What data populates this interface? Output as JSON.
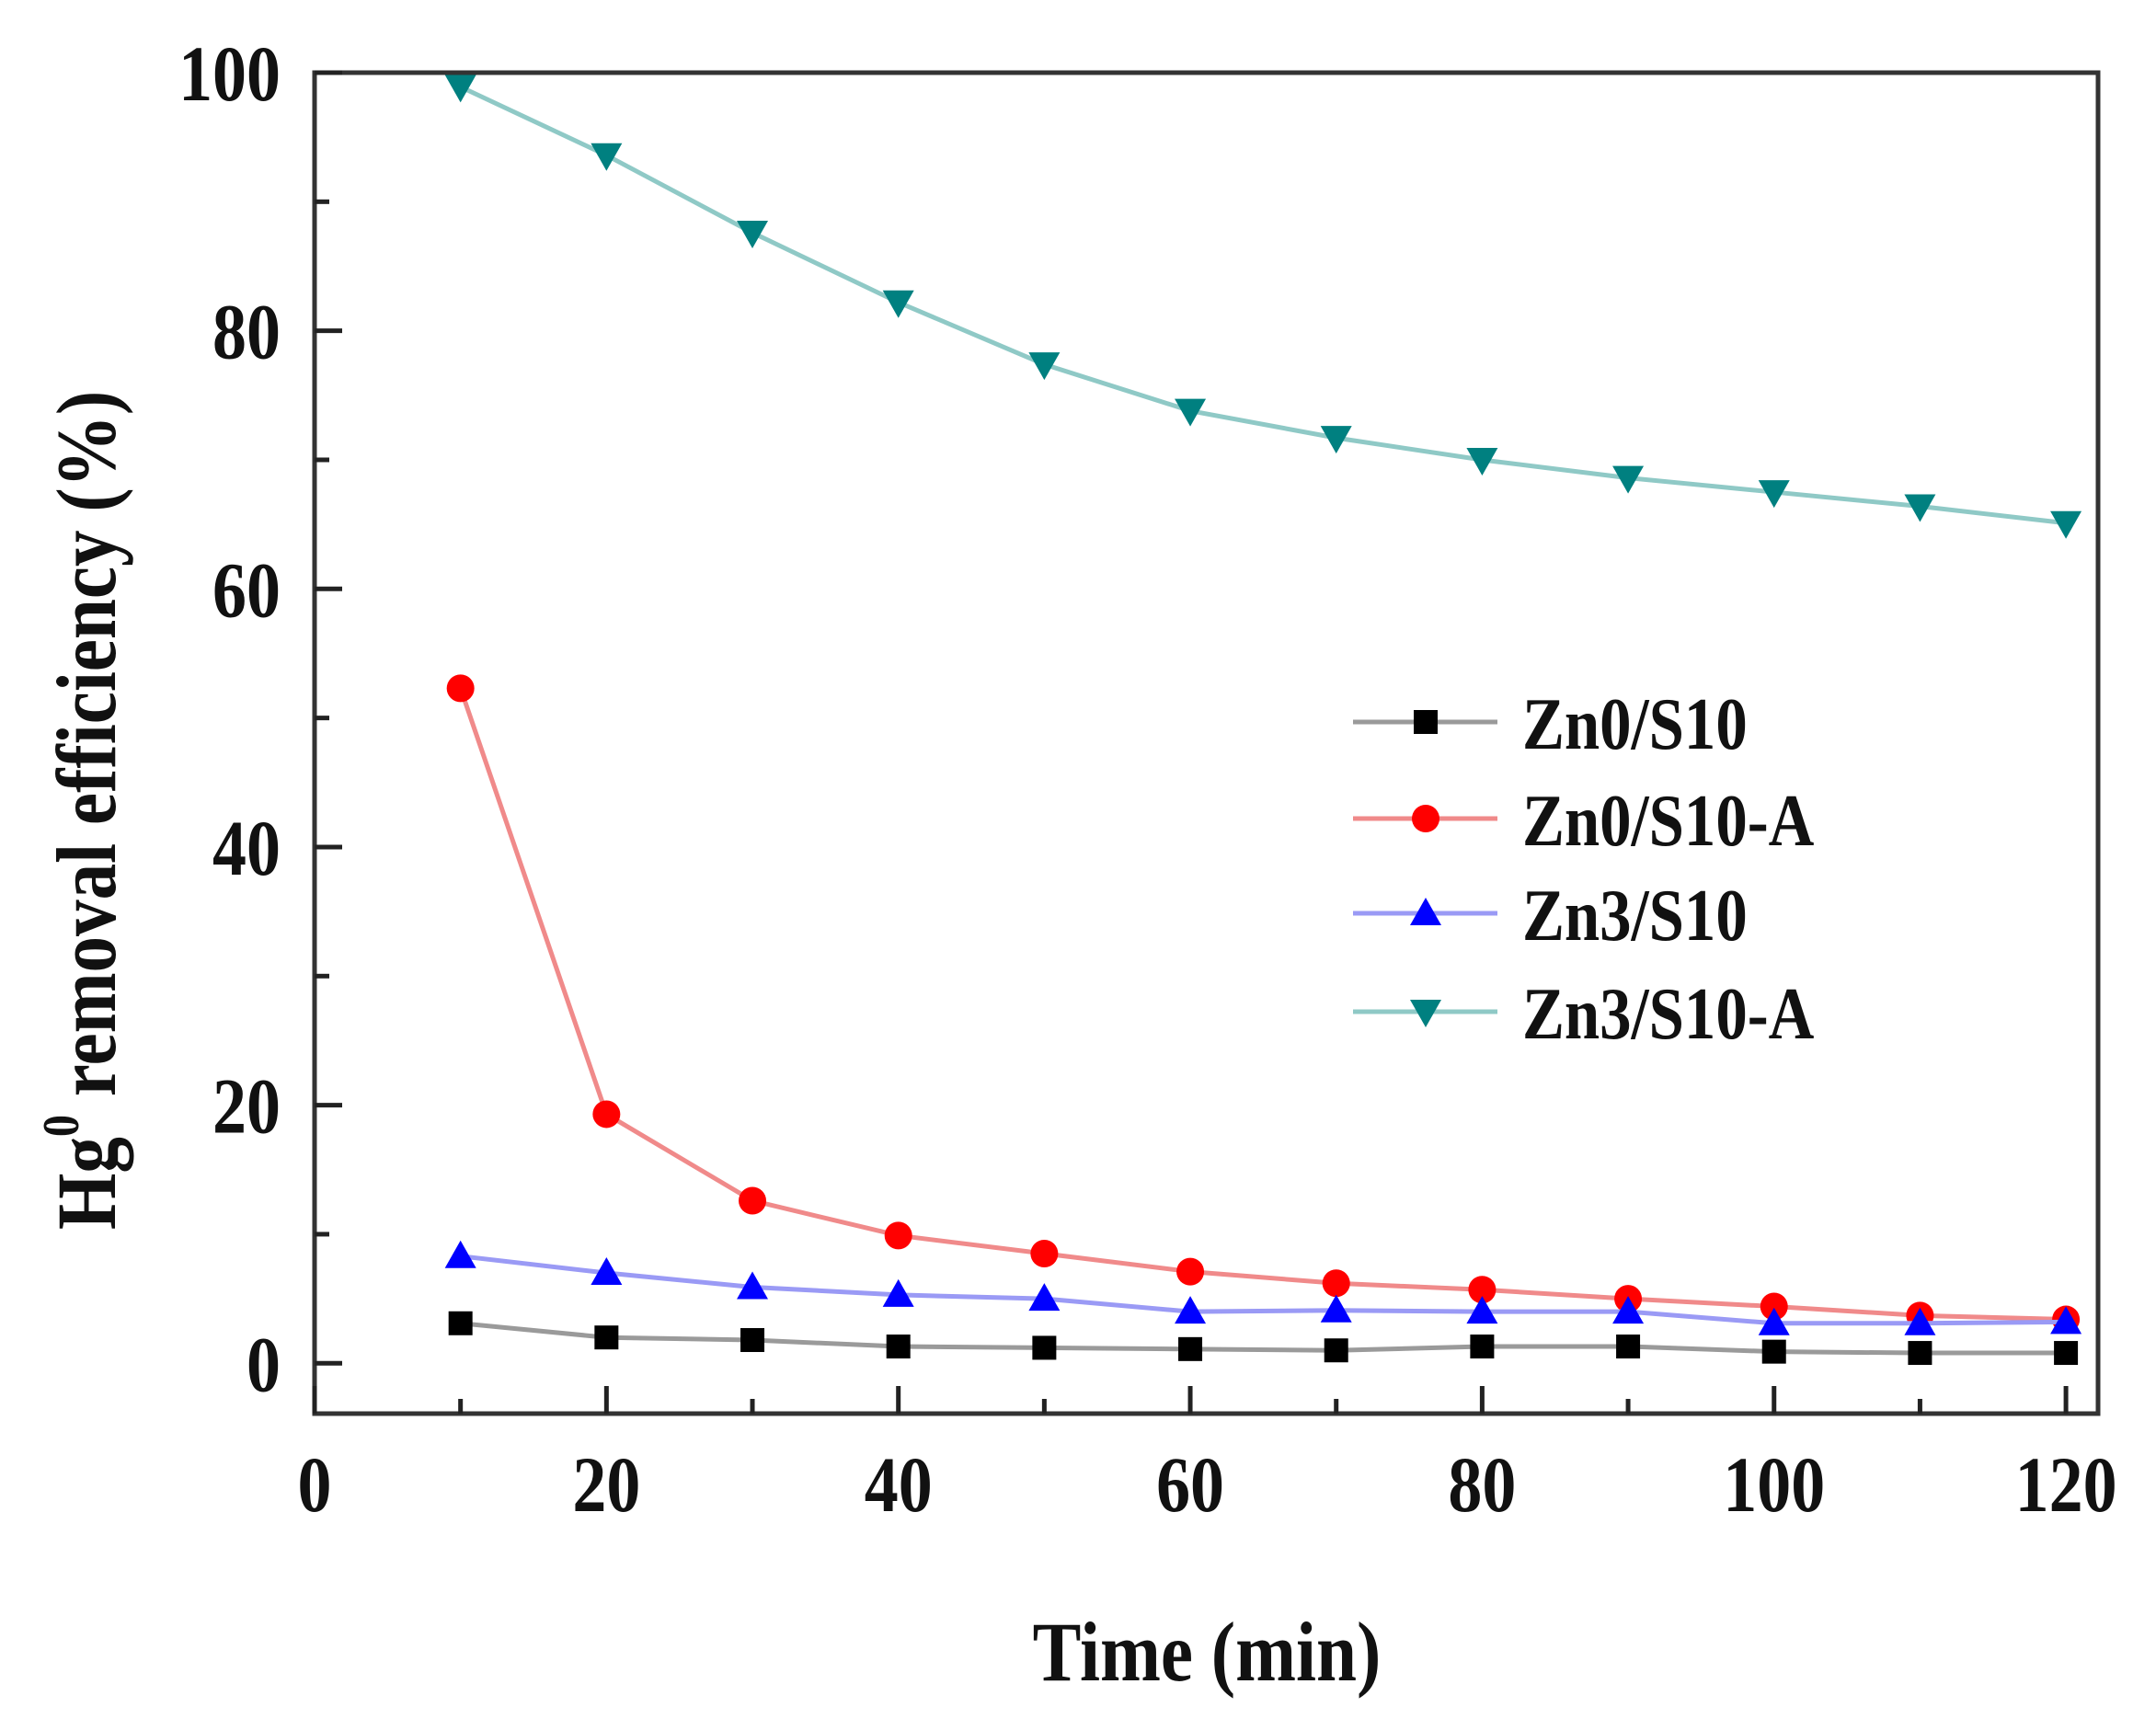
{
  "chart_data": {
    "type": "line",
    "title": "",
    "xlabel": "Time (min)",
    "ylabel_main": "Hg",
    "ylabel_sup": "0",
    "ylabel_rest": " removal efficiency (%)",
    "xlim": [
      0,
      122.2
    ],
    "ylim": [
      -3.9,
      100
    ],
    "x_ticks": [
      0,
      20,
      40,
      60,
      80,
      100,
      120
    ],
    "x_tick_labels": [
      "0",
      "20",
      "40",
      "60",
      "80",
      "100",
      "120"
    ],
    "x_minor_ticks": [
      10,
      30,
      50,
      70,
      90,
      110
    ],
    "y_ticks": [
      0,
      20,
      40,
      60,
      80,
      100
    ],
    "y_tick_labels": [
      "0",
      "20",
      "40",
      "60",
      "80",
      "100"
    ],
    "y_minor_ticks": [
      10,
      30,
      50,
      70,
      90
    ],
    "grid": false,
    "legend_position": "center-right",
    "x": [
      10,
      20,
      30,
      40,
      50,
      60,
      70,
      80,
      90,
      100,
      110,
      120
    ],
    "series": [
      {
        "name": "Zn0/S10",
        "marker": "square",
        "color": "#000000",
        "line_color": "#9a9a9a",
        "values": [
          3.1,
          2.0,
          1.8,
          1.3,
          1.2,
          1.1,
          1.0,
          1.3,
          1.3,
          0.9,
          0.8,
          0.8
        ]
      },
      {
        "name": "Zn0/S10-A",
        "marker": "circle",
        "color": "#ff0000",
        "line_color": "#f08a8a",
        "values": [
          52.3,
          19.3,
          12.6,
          9.9,
          8.5,
          7.1,
          6.2,
          5.7,
          5.0,
          4.4,
          3.7,
          3.4
        ]
      },
      {
        "name": "Zn3/S10",
        "marker": "triangle-up",
        "color": "#0000ff",
        "line_color": "#9a9af5",
        "values": [
          8.3,
          7.0,
          5.9,
          5.3,
          5.0,
          4.0,
          4.1,
          4.0,
          4.0,
          3.1,
          3.1,
          3.2
        ]
      },
      {
        "name": "Zn3/S10-A",
        "marker": "triangle-down",
        "color": "#008080",
        "line_color": "#8fc9c6",
        "values": [
          98.9,
          93.6,
          87.6,
          82.2,
          77.4,
          73.8,
          71.7,
          70.0,
          68.6,
          67.5,
          66.4,
          65.1
        ]
      }
    ]
  }
}
